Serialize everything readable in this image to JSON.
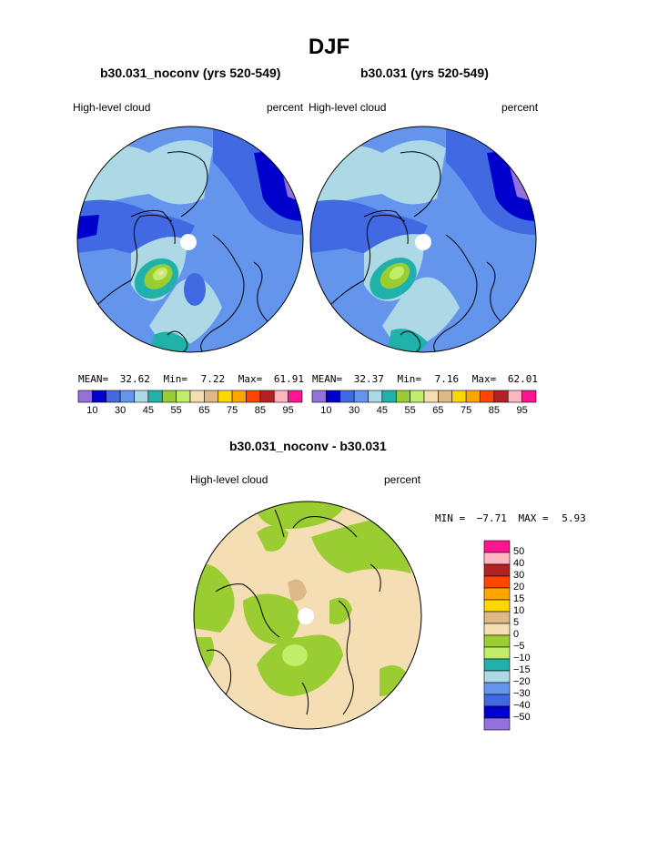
{
  "title": "DJF",
  "panels": [
    {
      "case": "b30.031_noconv (yrs 520-549)",
      "variable": "High-level cloud",
      "units": "percent",
      "stats": {
        "mean_label": "MEAN=",
        "mean": "32.62",
        "min_label": "Min=",
        "min": "7.22",
        "max_label": "Max=",
        "max": "61.91"
      }
    },
    {
      "case": "b30.031 (yrs 520-549)",
      "variable": "High-level cloud",
      "units": "percent",
      "stats": {
        "mean_label": "MEAN=",
        "mean": "32.37",
        "min_label": "Min=",
        "min": "7.16",
        "max_label": "Max=",
        "max": "62.01"
      }
    }
  ],
  "colorbar": {
    "colors": [
      "#9370db",
      "#0000cd",
      "#4169e1",
      "#6495ed",
      "#add8e6",
      "#20b2aa",
      "#9acd32",
      "#c0ee6a",
      "#f5deb3",
      "#deb887",
      "#ffd700",
      "#ffa500",
      "#ff4500",
      "#b22222",
      "#ffb6c1",
      "#ff1493"
    ],
    "tick_labels": [
      "10",
      "30",
      "45",
      "55",
      "65",
      "75",
      "85",
      "95"
    ]
  },
  "diff": {
    "title": "b30.031_noconv - b30.031",
    "variable": "High-level cloud",
    "units": "percent",
    "min_label": "MIN =",
    "min": "−7.71",
    "max_label": "MAX =",
    "max": "5.93",
    "colorbar": {
      "colors": [
        "#ff1493",
        "#ffb6c1",
        "#b22222",
        "#ff4500",
        "#ffa500",
        "#ffd700",
        "#deb887",
        "#f5deb3",
        "#9acd32",
        "#c0ee6a",
        "#20b2aa",
        "#add8e6",
        "#6495ed",
        "#4169e1",
        "#0000cd",
        "#9370db"
      ],
      "labels": [
        "50",
        "40",
        "30",
        "20",
        "15",
        "10",
        "5",
        "0",
        "−5",
        "−10",
        "−15",
        "−20",
        "−30",
        "−40",
        "−50"
      ]
    }
  },
  "chart_data": [
    {
      "type": "heatmap",
      "title": "b30.031_noconv (yrs 520-549)",
      "projection": "north-polar-stereographic",
      "variable": "High-level cloud",
      "units": "percent",
      "mean": 32.62,
      "min": 7.22,
      "max": 61.91,
      "levels": [
        10,
        30,
        45,
        55,
        65,
        75,
        85,
        95
      ]
    },
    {
      "type": "heatmap",
      "title": "b30.031 (yrs 520-549)",
      "projection": "north-polar-stereographic",
      "variable": "High-level cloud",
      "units": "percent",
      "mean": 32.37,
      "min": 7.16,
      "max": 62.01,
      "levels": [
        10,
        30,
        45,
        55,
        65,
        75,
        85,
        95
      ]
    },
    {
      "type": "heatmap",
      "title": "b30.031_noconv - b30.031",
      "projection": "north-polar-stereographic",
      "variable": "High-level cloud",
      "units": "percent",
      "min": -7.71,
      "max": 5.93,
      "levels": [
        -50,
        -40,
        -30,
        -20,
        -15,
        -10,
        -5,
        0,
        5,
        10,
        15,
        20,
        30,
        40,
        50
      ]
    }
  ]
}
